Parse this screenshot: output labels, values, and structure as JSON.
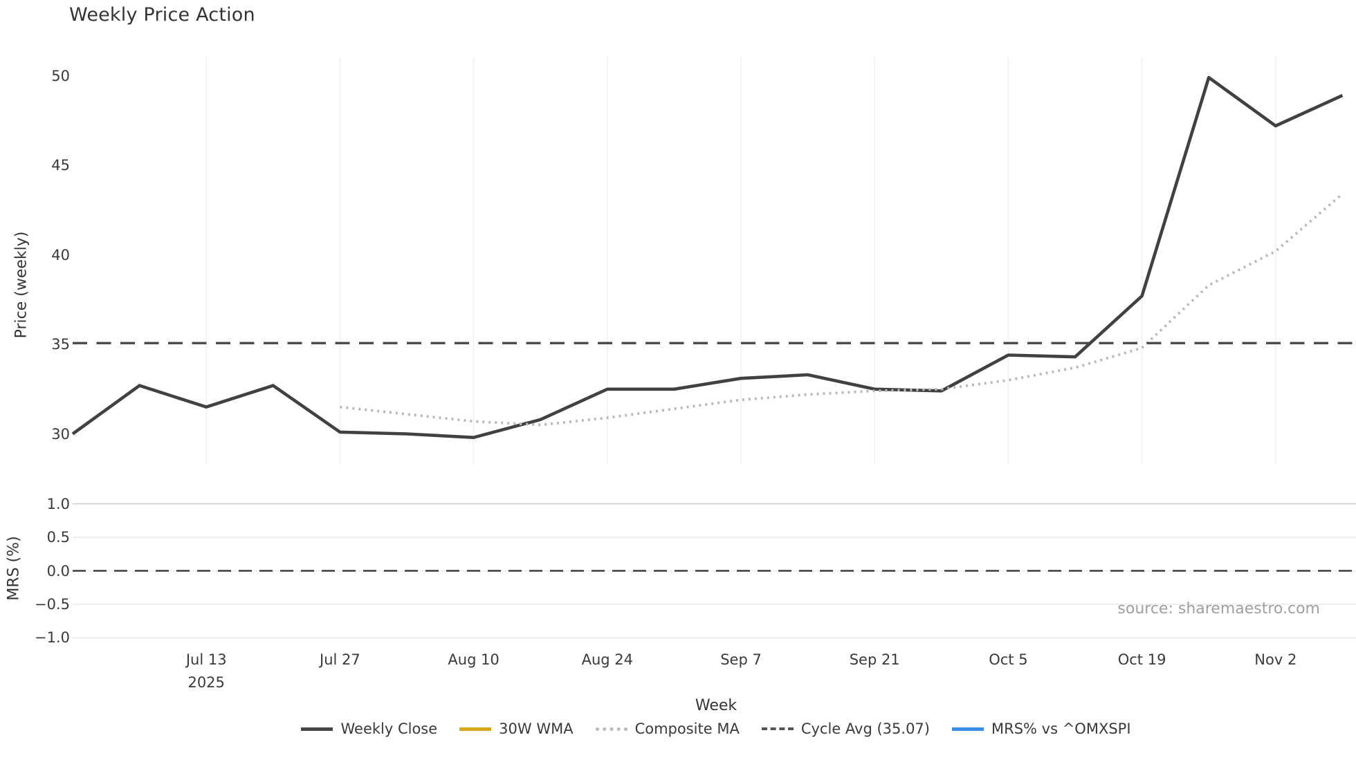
{
  "chart_data": {
    "type": "line",
    "title": "Weekly Price Action",
    "xlabel": "Week",
    "source_note": "source: sharemaestro.com",
    "x_tick_labels": [
      {
        "week_index": 2,
        "label": "Jul 13",
        "sublabel": "2025"
      },
      {
        "week_index": 4,
        "label": "Jul 27"
      },
      {
        "week_index": 6,
        "label": "Aug 10"
      },
      {
        "week_index": 8,
        "label": "Aug 24"
      },
      {
        "week_index": 10,
        "label": "Sep 7"
      },
      {
        "week_index": 12,
        "label": "Sep 21"
      },
      {
        "week_index": 14,
        "label": "Oct 5"
      },
      {
        "week_index": 16,
        "label": "Oct 19"
      },
      {
        "week_index": 18,
        "label": "Nov 2"
      }
    ],
    "panels": [
      {
        "name": "price",
        "ylabel": "Price (weekly)",
        "ylim": [
          28.3,
          51.1
        ],
        "grid": "vertical-weekly",
        "yticks": [
          {
            "value": 50,
            "label": "50"
          },
          {
            "value": 45,
            "label": "45"
          },
          {
            "value": 40,
            "label": "40"
          },
          {
            "value": 35,
            "label": "35"
          },
          {
            "value": 30,
            "label": "30"
          }
        ],
        "series": [
          {
            "name": "Weekly Close",
            "color": "#414141",
            "style": "solid",
            "values": [
              30.0,
              32.7,
              31.5,
              32.7,
              30.1,
              30.0,
              29.8,
              30.8,
              32.5,
              32.5,
              33.1,
              33.3,
              32.5,
              32.4,
              34.4,
              34.3,
              37.7,
              49.9,
              47.2,
              48.9
            ]
          },
          {
            "name": "Composite MA",
            "color": "#b9b9b9",
            "style": "dotted",
            "values": [
              null,
              null,
              null,
              null,
              31.5,
              31.1,
              30.7,
              30.5,
              30.9,
              31.4,
              31.9,
              32.2,
              32.4,
              32.5,
              33.0,
              33.7,
              34.8,
              38.3,
              40.2,
              43.4
            ]
          },
          {
            "name": "30W WMA",
            "color": "#d7a61e",
            "style": "solid",
            "values": []
          },
          {
            "name": "Cycle Avg",
            "color": "#474747",
            "style": "dashed",
            "constant": 35.07
          }
        ]
      },
      {
        "name": "mrs",
        "ylabel": "MRS (%)",
        "ylim": [
          -1.0,
          1.0
        ],
        "grid": "horizontal",
        "yticks": [
          {
            "value": 1.0,
            "label": "1.0"
          },
          {
            "value": 0.5,
            "label": "0.5"
          },
          {
            "value": 0.0,
            "label": "0.0"
          },
          {
            "value": -0.5,
            "label": "−0.5"
          },
          {
            "value": -1.0,
            "label": "−1.0"
          }
        ],
        "zero_line": {
          "value": 0.0,
          "style": "dashed",
          "color": "#3b3b3b"
        }
      }
    ],
    "legend": [
      {
        "label": "Weekly Close",
        "color": "#474747",
        "style": "solid"
      },
      {
        "label": "30W WMA",
        "color": "#d7a61e",
        "style": "solid"
      },
      {
        "label": "Composite MA",
        "color": "#b9b9b9",
        "style": "dotted"
      },
      {
        "label": "Cycle Avg (35.07)",
        "color": "#555555",
        "style": "dashed"
      },
      {
        "label": "MRS% vs ^OMXSPI",
        "color": "#3a8ee6",
        "style": "solid"
      }
    ]
  }
}
